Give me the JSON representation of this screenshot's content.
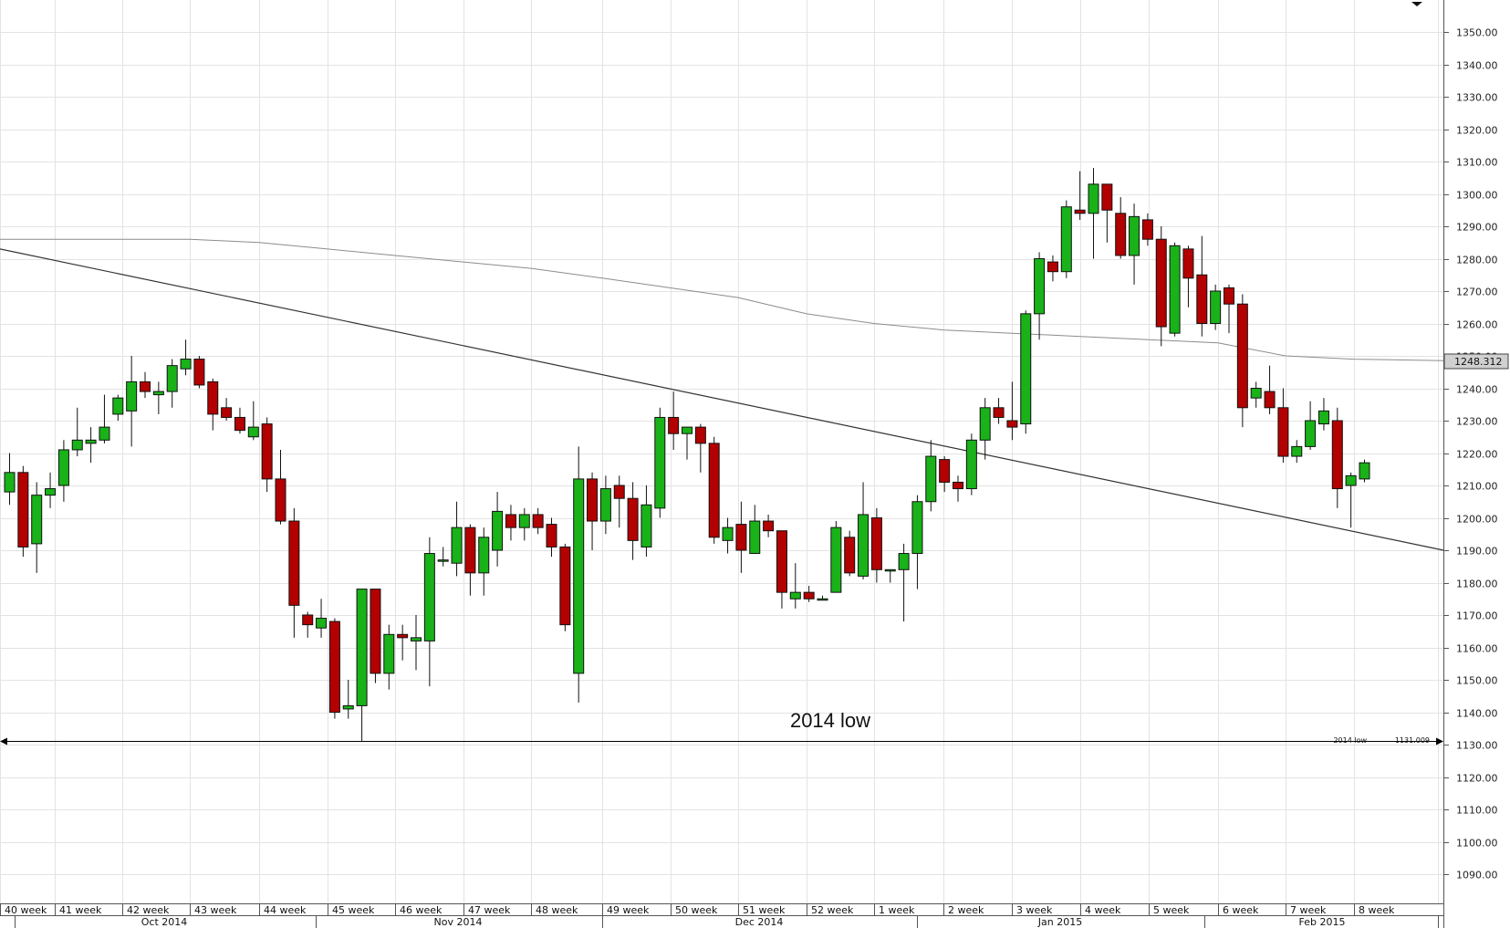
{
  "chart_data": {
    "type": "candlestick",
    "y_axis": {
      "ticks": [
        "1090.00",
        "1100.00",
        "1110.00",
        "1120.00",
        "1130.00",
        "1140.00",
        "1150.00",
        "1160.00",
        "1170.00",
        "1180.00",
        "1190.00",
        "1200.00",
        "1210.00",
        "1220.00",
        "1230.00",
        "1240.00",
        "1250.00",
        "1260.00",
        "1270.00",
        "1280.00",
        "1290.00",
        "1300.00",
        "1310.00",
        "1320.00",
        "1330.00",
        "1340.00",
        "1350.00"
      ]
    },
    "x_axis": {
      "week_labels": [
        "40 week",
        "41 week",
        "42 week",
        "43 week",
        "44 week",
        "45 week",
        "46 week",
        "47 week",
        "48 week",
        "49 week",
        "50 week",
        "51 week",
        "52 week",
        "1 week",
        "2 week",
        "3 week",
        "4 week",
        "5 week",
        "6 week",
        "7 week",
        "8 week"
      ],
      "month_labels": [
        "Oct 2014",
        "Nov 2014",
        "Dec 2014",
        "Jan 2015",
        "Feb 2015"
      ]
    },
    "candles": [
      [
        1208,
        1214,
        1204,
        1220
      ],
      [
        1214,
        1191,
        1188,
        1216
      ],
      [
        1192,
        1207,
        1183,
        1211
      ],
      [
        1207,
        1209,
        1203,
        1214
      ],
      [
        1210,
        1221,
        1205,
        1224
      ],
      [
        1221,
        1224,
        1219,
        1234
      ],
      [
        1223,
        1224,
        1217,
        1228
      ],
      [
        1224,
        1228,
        1223,
        1238
      ],
      [
        1232,
        1237,
        1230,
        1238
      ],
      [
        1233,
        1242,
        1222,
        1250
      ],
      [
        1242,
        1239,
        1237,
        1245
      ],
      [
        1238,
        1239,
        1232,
        1242
      ],
      [
        1239,
        1247,
        1234,
        1249
      ],
      [
        1246,
        1249,
        1244,
        1255
      ],
      [
        1249,
        1241,
        1240,
        1250
      ],
      [
        1242,
        1232,
        1227,
        1243
      ],
      [
        1234,
        1231,
        1230,
        1237
      ],
      [
        1231,
        1227,
        1226,
        1234
      ],
      [
        1225,
        1228,
        1224,
        1236
      ],
      [
        1229,
        1212,
        1208,
        1231
      ],
      [
        1212,
        1199,
        1198,
        1221
      ],
      [
        1199,
        1173,
        1163,
        1203
      ],
      [
        1170,
        1167,
        1163,
        1171
      ],
      [
        1166,
        1169,
        1163,
        1175
      ],
      [
        1168,
        1140,
        1138,
        1169
      ],
      [
        1141,
        1142,
        1138,
        1150
      ],
      [
        1142,
        1178,
        1131,
        1178
      ],
      [
        1178,
        1152,
        1149,
        1178
      ],
      [
        1152,
        1164,
        1147,
        1167
      ],
      [
        1164,
        1163,
        1156,
        1167
      ],
      [
        1162,
        1163,
        1153,
        1170
      ],
      [
        1162,
        1189,
        1148,
        1194
      ],
      [
        1187,
        1187,
        1185,
        1191
      ],
      [
        1186,
        1197,
        1182,
        1205
      ],
      [
        1197,
        1183,
        1176,
        1198
      ],
      [
        1183,
        1194,
        1176,
        1197
      ],
      [
        1190,
        1202,
        1185,
        1208
      ],
      [
        1201,
        1197,
        1193,
        1204
      ],
      [
        1197,
        1201,
        1193,
        1203
      ],
      [
        1201,
        1197,
        1195,
        1203
      ],
      [
        1198,
        1191,
        1188,
        1200
      ],
      [
        1191,
        1167,
        1165,
        1192
      ],
      [
        1152,
        1212,
        1143,
        1222
      ],
      [
        1212,
        1199,
        1190,
        1214
      ],
      [
        1199,
        1209,
        1195,
        1213
      ],
      [
        1210,
        1206,
        1197,
        1213
      ],
      [
        1206,
        1193,
        1187,
        1211
      ],
      [
        1191,
        1204,
        1188,
        1210
      ],
      [
        1203,
        1231,
        1200,
        1234
      ],
      [
        1231,
        1226,
        1221,
        1239
      ],
      [
        1226,
        1228,
        1218,
        1228
      ],
      [
        1228,
        1223,
        1214,
        1229
      ],
      [
        1223,
        1194,
        1192,
        1225
      ],
      [
        1193,
        1197,
        1189,
        1200
      ],
      [
        1198,
        1190,
        1183,
        1205
      ],
      [
        1189,
        1199,
        1189,
        1204
      ],
      [
        1199,
        1196,
        1194,
        1201
      ],
      [
        1196,
        1177,
        1172,
        1196
      ],
      [
        1175,
        1177,
        1172,
        1186
      ],
      [
        1177,
        1175,
        1174,
        1179
      ],
      [
        1175,
        1175,
        1175,
        1176
      ],
      [
        1177,
        1197,
        1177,
        1199
      ],
      [
        1194,
        1183,
        1182,
        1196
      ],
      [
        1182,
        1201,
        1181,
        1211
      ],
      [
        1200,
        1184,
        1180,
        1203
      ],
      [
        1184,
        1184,
        1180,
        1184
      ],
      [
        1184,
        1189,
        1168,
        1192
      ],
      [
        1189,
        1205,
        1178,
        1207
      ],
      [
        1205,
        1219,
        1202,
        1224
      ],
      [
        1218,
        1211,
        1208,
        1219
      ],
      [
        1211,
        1209,
        1205,
        1213
      ],
      [
        1209,
        1224,
        1207,
        1226
      ],
      [
        1224,
        1234,
        1218,
        1237
      ],
      [
        1234,
        1231,
        1229,
        1237
      ],
      [
        1230,
        1228,
        1224,
        1242
      ],
      [
        1229,
        1263,
        1226,
        1264
      ],
      [
        1263,
        1280,
        1255,
        1282
      ],
      [
        1279,
        1276,
        1273,
        1281
      ],
      [
        1276,
        1296,
        1274,
        1298
      ],
      [
        1295,
        1294,
        1292,
        1307
      ],
      [
        1294,
        1303,
        1280,
        1308
      ],
      [
        1303,
        1295,
        1285,
        1303
      ],
      [
        1294,
        1281,
        1280,
        1299
      ],
      [
        1281,
        1293,
        1272,
        1297
      ],
      [
        1292,
        1286,
        1284,
        1294
      ],
      [
        1286,
        1259,
        1253,
        1290
      ],
      [
        1257,
        1284,
        1256,
        1285
      ],
      [
        1283,
        1274,
        1265,
        1284
      ],
      [
        1275,
        1260,
        1256,
        1287
      ],
      [
        1260,
        1270,
        1258,
        1272
      ],
      [
        1271,
        1266,
        1257,
        1272
      ],
      [
        1266,
        1234,
        1228,
        1269
      ],
      [
        1237,
        1240,
        1234,
        1242
      ],
      [
        1239,
        1234,
        1232,
        1247
      ],
      [
        1234,
        1219,
        1217,
        1240
      ],
      [
        1219,
        1222,
        1217,
        1224
      ],
      [
        1222,
        1230,
        1221,
        1236
      ],
      [
        1229,
        1233,
        1227,
        1237
      ],
      [
        1230,
        1209,
        1203,
        1234
      ],
      [
        1210,
        1213,
        1197,
        1214
      ],
      [
        1212,
        1217,
        1211,
        1218
      ]
    ],
    "series": [
      {
        "name": "",
        "kind": "downtrend line",
        "start": [
          "40 week",
          1283
        ],
        "end": [
          "8 week",
          1190
        ]
      },
      {
        "name": "",
        "kind": "moving average",
        "values": [
          1286,
          1286,
          1286,
          1286,
          1285,
          1283,
          1281,
          1279,
          1277,
          1274,
          1271,
          1268,
          1263,
          1260,
          1258,
          1257,
          1256,
          1255,
          1254,
          1250,
          1249,
          1248.312
        ]
      }
    ],
    "level": {
      "label": "2014 low",
      "value": 1131.009,
      "value_text": "1131.009",
      "tag": "2014 low"
    },
    "annotation": "2014 low",
    "last_value_tag": "1248.312",
    "colors": {
      "up": "#19b219",
      "down": "#b30000",
      "grid": "#e3e3e3",
      "line": "#333333",
      "ma": "#8c8c8c"
    },
    "grid": true,
    "legend": "none"
  }
}
